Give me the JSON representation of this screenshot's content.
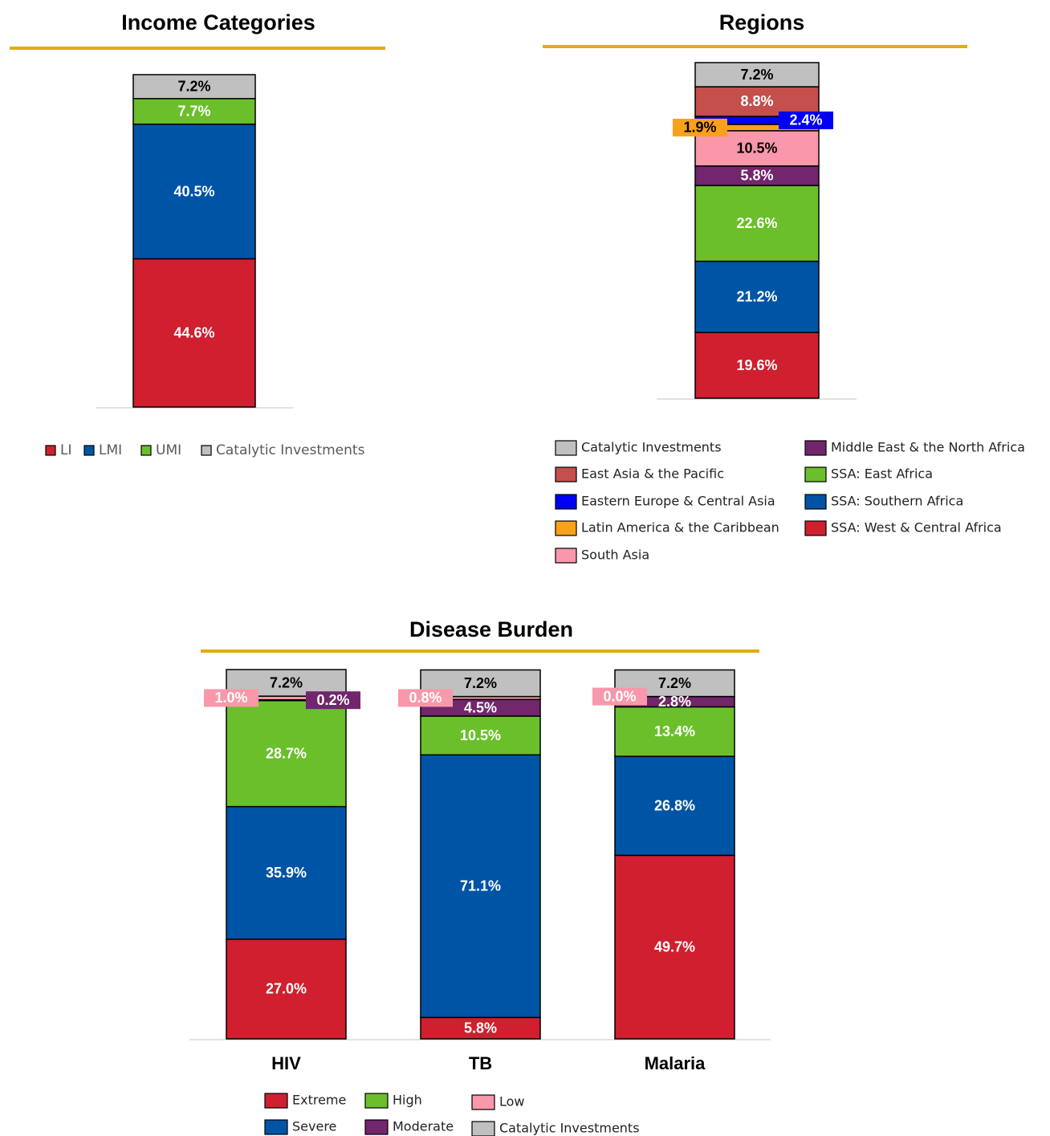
{
  "chart_data": [
    {
      "type": "bar",
      "stacked": true,
      "title": "Income Categories",
      "categories": [
        null
      ],
      "ylim": [
        0,
        100
      ],
      "series": [
        {
          "name": "LI",
          "color": "#d01f2e",
          "values": [
            44.6
          ],
          "value_labels": [
            "44.6%"
          ]
        },
        {
          "name": "LMI",
          "color": "#0054a6",
          "values": [
            40.5
          ],
          "value_labels": [
            "40.5%"
          ]
        },
        {
          "name": "UMI",
          "color": "#6abf2b",
          "values": [
            7.7
          ],
          "value_labels": [
            "7.7%"
          ]
        },
        {
          "name": "Catalytic Investments",
          "color": "#c0c0c0",
          "values": [
            7.2
          ],
          "value_labels": [
            "7.2%"
          ]
        }
      ]
    },
    {
      "type": "bar",
      "stacked": true,
      "title": "Regions",
      "categories": [
        null
      ],
      "ylim": [
        0,
        100
      ],
      "series": [
        {
          "name": "SSA: West & Central Africa",
          "color": "#d01f2e",
          "values": [
            19.6
          ],
          "value_labels": [
            "19.6%"
          ]
        },
        {
          "name": "SSA: Southern Africa",
          "color": "#0054a6",
          "values": [
            21.2
          ],
          "value_labels": [
            "21.2%"
          ]
        },
        {
          "name": "SSA: East Africa",
          "color": "#6abf2b",
          "values": [
            22.6
          ],
          "value_labels": [
            "22.6%"
          ]
        },
        {
          "name": "Middle East & the North Africa",
          "color": "#72266b",
          "values": [
            5.8
          ],
          "value_labels": [
            "5.8%"
          ]
        },
        {
          "name": "South Asia",
          "color": "#f898aa",
          "values": [
            10.5
          ],
          "value_labels": [
            "10.5%"
          ]
        },
        {
          "name": "Latin America & the Caribbean",
          "color": "#f9a11b",
          "values": [
            1.9
          ],
          "value_labels": [
            "1.9%"
          ]
        },
        {
          "name": "Eastern Europe & Central Asia",
          "color": "#0000f5",
          "values": [
            2.4
          ],
          "value_labels": [
            "2.4%"
          ]
        },
        {
          "name": "East Asia & the Pacific",
          "color": "#c54f4d",
          "values": [
            8.8
          ],
          "value_labels": [
            "8.8%"
          ]
        },
        {
          "name": "Catalytic Investments",
          "color": "#c0c0c0",
          "values": [
            7.2
          ],
          "value_labels": [
            "7.2%"
          ]
        }
      ]
    },
    {
      "type": "bar",
      "stacked": true,
      "title": "Disease Burden",
      "categories": [
        "HIV",
        "TB",
        "Malaria"
      ],
      "ylim": [
        0,
        100
      ],
      "series": [
        {
          "name": "Extreme",
          "color": "#d01f2e",
          "values": [
            27.0,
            5.8,
            49.7
          ],
          "value_labels": [
            "27.0%",
            "5.8%",
            "49.7%"
          ]
        },
        {
          "name": "Severe",
          "color": "#0054a6",
          "values": [
            35.9,
            71.1,
            26.8
          ],
          "value_labels": [
            "35.9%",
            "71.1%",
            "26.8%"
          ]
        },
        {
          "name": "High",
          "color": "#6abf2b",
          "values": [
            28.7,
            10.5,
            13.4
          ],
          "value_labels": [
            "28.7%",
            "10.5%",
            "13.4%"
          ]
        },
        {
          "name": "Moderate",
          "color": "#72266b",
          "values": [
            0.2,
            4.5,
            2.8
          ],
          "value_labels": [
            "0.2%",
            "4.5%",
            "2.8%"
          ]
        },
        {
          "name": "Low",
          "color": "#f898aa",
          "values": [
            1.0,
            0.8,
            0.0
          ],
          "value_labels": [
            "1.0%",
            "0.8%",
            "0.0%"
          ]
        },
        {
          "name": "Catalytic Investments",
          "color": "#c0c0c0",
          "values": [
            7.2,
            7.2,
            7.2
          ],
          "value_labels": [
            "7.2%",
            "7.2%",
            "7.2%"
          ]
        }
      ]
    }
  ]
}
